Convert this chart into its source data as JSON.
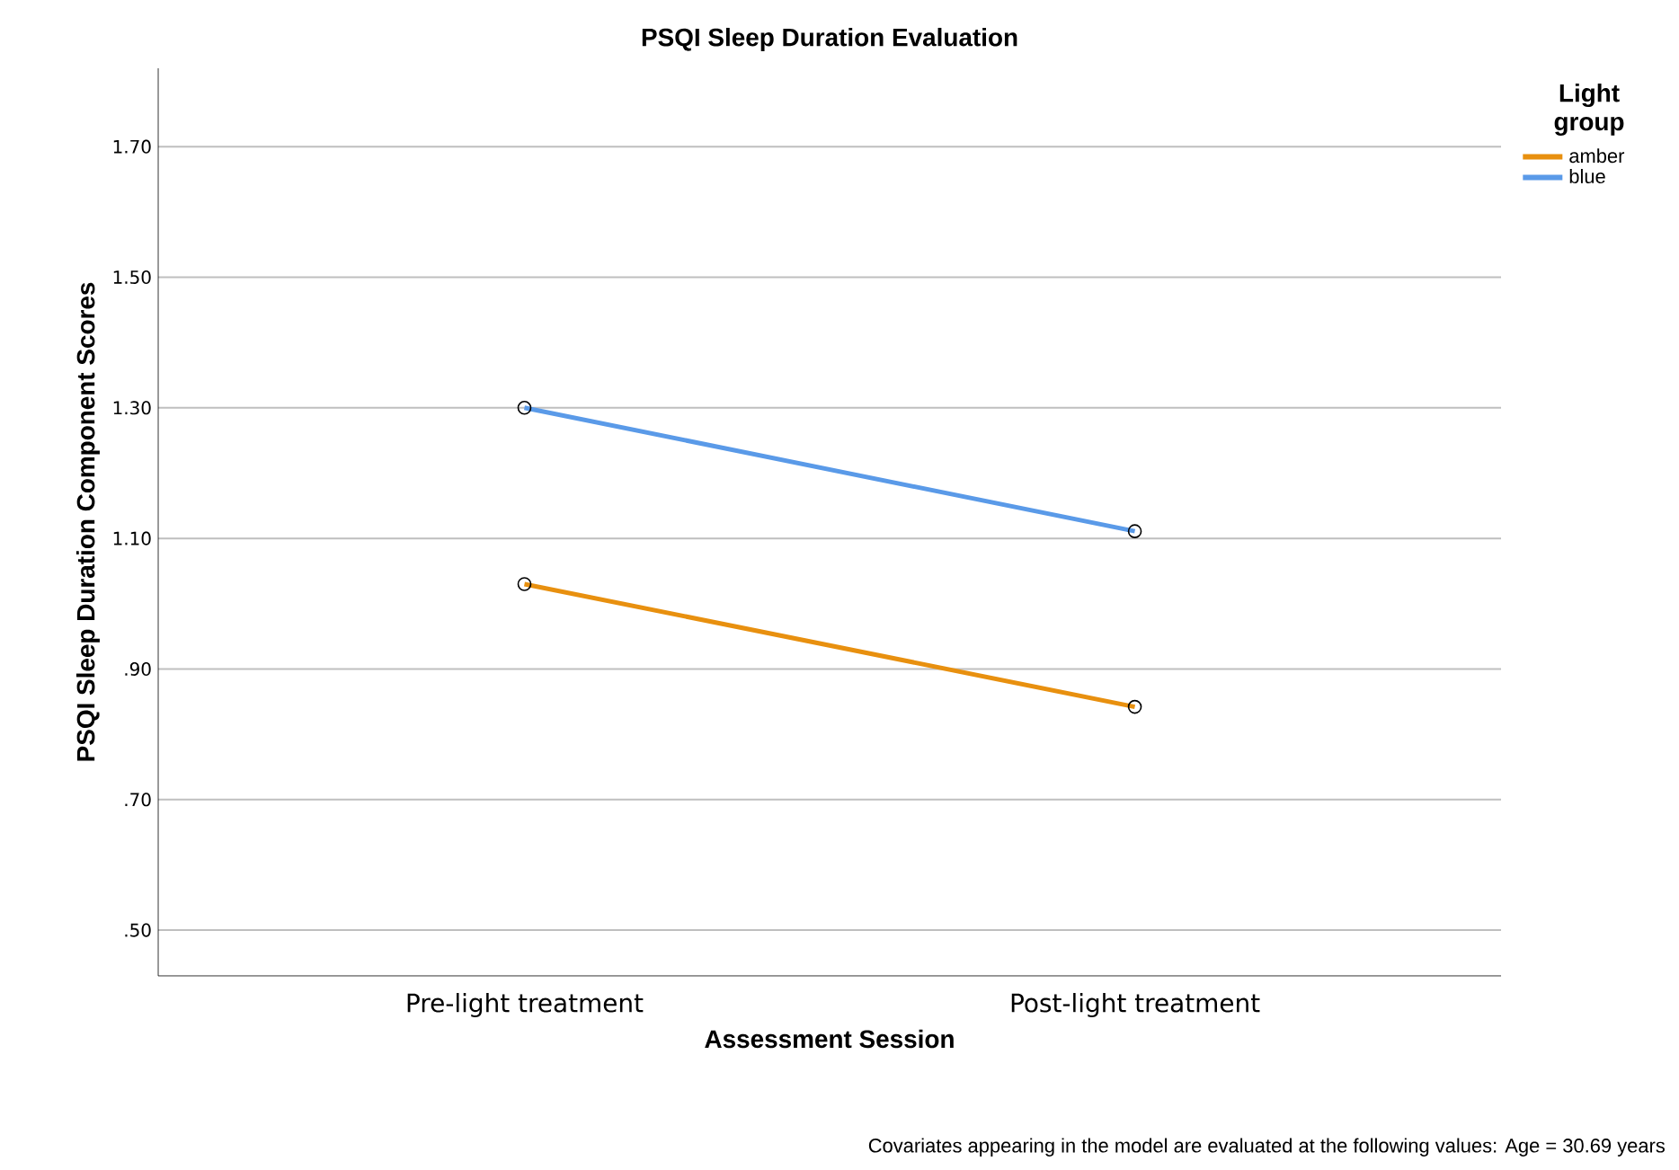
{
  "chart_data": {
    "type": "line",
    "title": "PSQI Sleep Duration Evaluation",
    "xlabel": "Assessment Session",
    "ylabel": "PSQI Sleep Duration Component Scores",
    "legend_title": "Light group",
    "categories": [
      "Pre-light treatment",
      "Post-light treatment"
    ],
    "series": [
      {
        "name": "amber",
        "color": "#e8900f",
        "values": [
          1.03,
          0.842
        ]
      },
      {
        "name": "blue",
        "color": "#5a9ae8",
        "values": [
          1.3,
          1.111
        ]
      }
    ],
    "ylim": [
      0.43,
      1.82
    ],
    "yticks": [
      {
        "value": 0.5,
        "label": ".50"
      },
      {
        "value": 0.7,
        "label": ".70"
      },
      {
        "value": 0.9,
        "label": ".90"
      },
      {
        "value": 1.1,
        "label": "1.10"
      },
      {
        "value": 1.3,
        "label": "1.30"
      },
      {
        "value": 1.5,
        "label": "1.50"
      },
      {
        "value": 1.7,
        "label": "1.70"
      }
    ],
    "grid": "y",
    "legend": "top right",
    "marker": "circle",
    "line_style": "solid",
    "annotations": [
      "Covariates appearing in the model are evaluated at the following values: Age = 30.69 years"
    ]
  }
}
